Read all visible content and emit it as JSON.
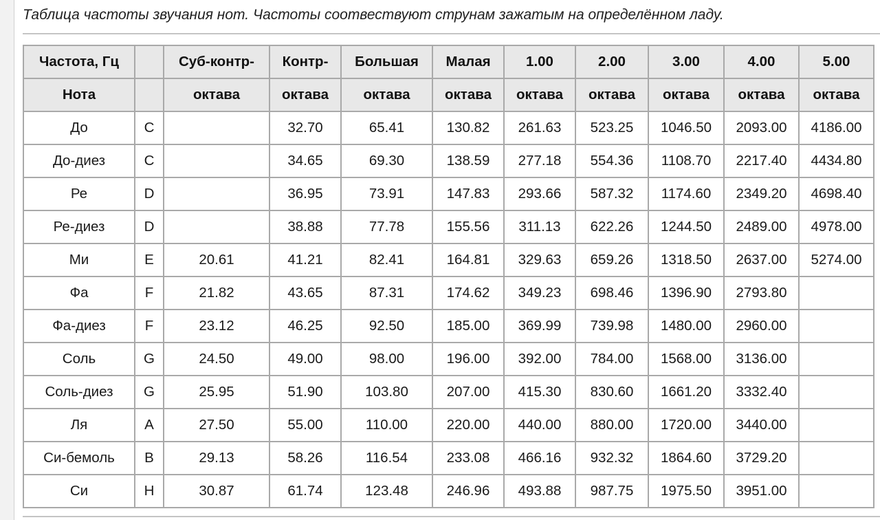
{
  "caption": "Таблица частоты звучания нот. Частоты соотвествуют струнам зажатым на определённом ладу.",
  "header_row_1": [
    "Частота, Гц",
    "",
    "Суб-контр-",
    "Контр-",
    "Большая",
    "Малая",
    "1.00",
    "2.00",
    "3.00",
    "4.00",
    "5.00"
  ],
  "header_row_2": [
    "Нота",
    "",
    "октава",
    "октава",
    "октава",
    "октава",
    "октава",
    "октава",
    "октава",
    "октава",
    "октава"
  ],
  "rows": [
    [
      "До",
      "C",
      "",
      "32.70",
      "65.41",
      "130.82",
      "261.63",
      "523.25",
      "1046.50",
      "2093.00",
      "4186.00"
    ],
    [
      "До-диез",
      "C",
      "",
      "34.65",
      "69.30",
      "138.59",
      "277.18",
      "554.36",
      "1108.70",
      "2217.40",
      "4434.80"
    ],
    [
      "Ре",
      "D",
      "",
      "36.95",
      "73.91",
      "147.83",
      "293.66",
      "587.32",
      "1174.60",
      "2349.20",
      "4698.40"
    ],
    [
      "Ре-диез",
      "D",
      "",
      "38.88",
      "77.78",
      "155.56",
      "311.13",
      "622.26",
      "1244.50",
      "2489.00",
      "4978.00"
    ],
    [
      "Ми",
      "E",
      "20.61",
      "41.21",
      "82.41",
      "164.81",
      "329.63",
      "659.26",
      "1318.50",
      "2637.00",
      "5274.00"
    ],
    [
      "Фа",
      "F",
      "21.82",
      "43.65",
      "87.31",
      "174.62",
      "349.23",
      "698.46",
      "1396.90",
      "2793.80",
      ""
    ],
    [
      "Фа-диез",
      "F",
      "23.12",
      "46.25",
      "92.50",
      "185.00",
      "369.99",
      "739.98",
      "1480.00",
      "2960.00",
      ""
    ],
    [
      "Соль",
      "G",
      "24.50",
      "49.00",
      "98.00",
      "196.00",
      "392.00",
      "784.00",
      "1568.00",
      "3136.00",
      ""
    ],
    [
      "Соль-диез",
      "G",
      "25.95",
      "51.90",
      "103.80",
      "207.00",
      "415.30",
      "830.60",
      "1661.20",
      "3332.40",
      ""
    ],
    [
      "Ля",
      "A",
      "27.50",
      "55.00",
      "110.00",
      "220.00",
      "440.00",
      "880.00",
      "1720.00",
      "3440.00",
      ""
    ],
    [
      "Си-бемоль",
      "B",
      "29.13",
      "58.26",
      "116.54",
      "233.08",
      "466.16",
      "932.32",
      "1864.60",
      "3729.20",
      ""
    ],
    [
      "Си",
      "H",
      "30.87",
      "61.74",
      "123.48",
      "246.96",
      "493.88",
      "987.75",
      "1975.50",
      "3951.00",
      ""
    ]
  ]
}
